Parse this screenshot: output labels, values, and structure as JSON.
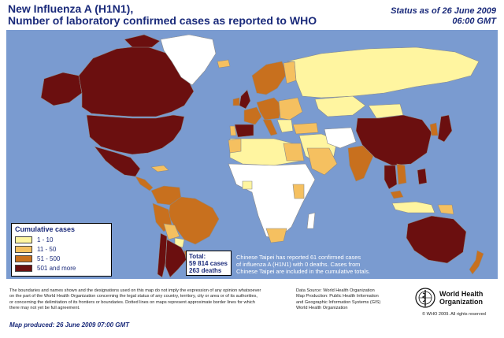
{
  "header": {
    "title_line1": "New Influenza A (H1N1),",
    "title_line2": "Number of  laboratory confirmed cases as reported to WHO",
    "status_line1": "Status as of 26 June 2009",
    "status_line2": "06:00 GMT"
  },
  "legend": {
    "title": "Cumulative cases",
    "items": [
      {
        "label": "1 - 10",
        "color": "#fff5a0"
      },
      {
        "label": "11 - 50",
        "color": "#f5c060"
      },
      {
        "label": "51 - 500",
        "color": "#c8701e"
      },
      {
        "label": "501 and more",
        "color": "#6b0f0f"
      }
    ]
  },
  "colors": {
    "ocean": "#7a9bd0",
    "no_cases": "#ffffff",
    "border": "#8a8a8a"
  },
  "total": {
    "label": "Total:",
    "cases": "59 814 cases",
    "deaths": "263 deaths"
  },
  "note": {
    "line1": "Chinese Taipei has reported 61 confirmed cases",
    "line2": "of influenza A (H1N1) with 0 deaths. Cases from",
    "line3": "Chinese Taipei are included in the cumulative totals."
  },
  "footer": {
    "disclaimer_line1": "The boundaries and names shown and the designations used on this map do not imply the expression of any opinion whatsoever",
    "disclaimer_line2": "on the part of the World Health Organization concerning the legal status of any country, territory, city or area or of its authorities,",
    "disclaimer_line3": "or concerning the delimitation of its frontiers or boundaries.  Dotted lines on maps represent approximate border lines for which",
    "disclaimer_line4": "there may not yet be full agreement.",
    "map_produced": "Map produced: 26 June 2009 07:00 GMT",
    "source_line1": "Data Source: World Health Organization",
    "source_line2": "Map Production: Public Health Information",
    "source_line3": "and Geographic Information Systems (GIS)",
    "source_line4": "World Health Organization",
    "who_name_line1": "World Health",
    "who_name_line2": "Organization",
    "copyright": "© WHO 2009. All rights reserved"
  }
}
